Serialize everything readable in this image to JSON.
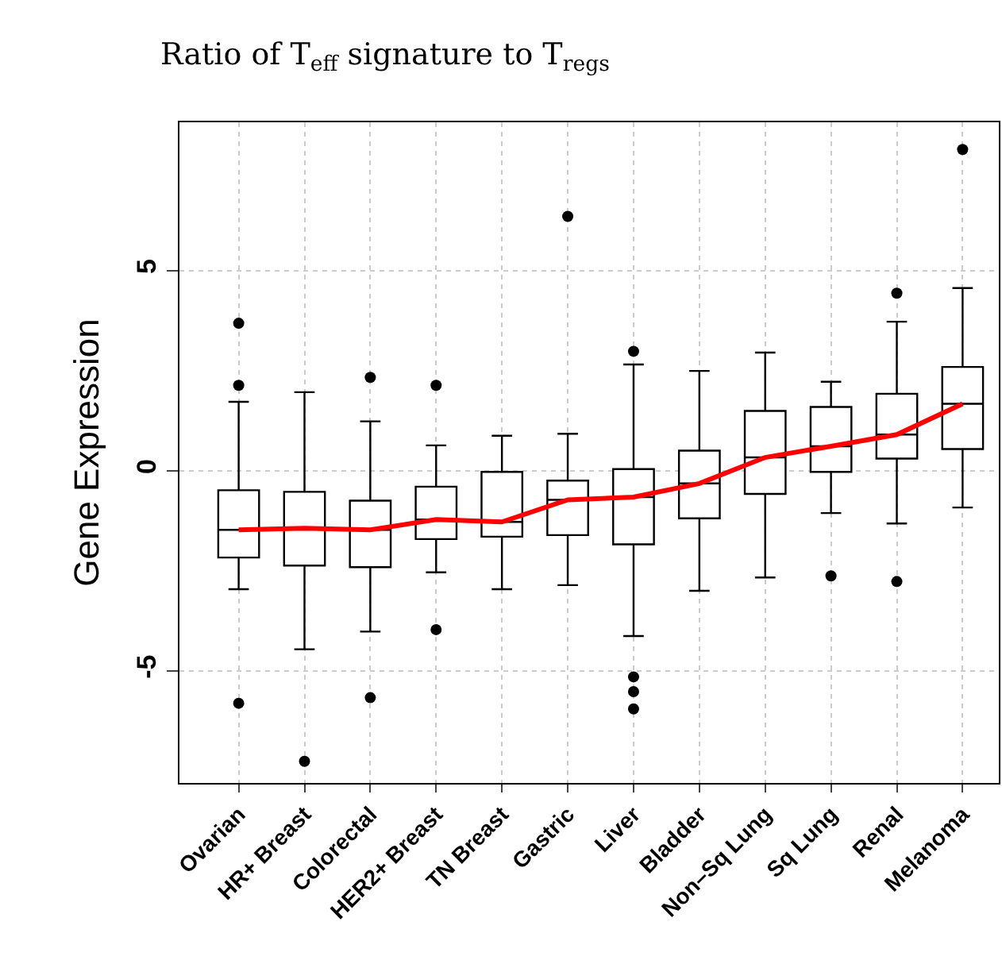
{
  "chart_data": {
    "type": "box",
    "title": "Ratio of T$_{eff}$ signature to T$_{regs}$",
    "ylabel": "Gene Expression",
    "categories": [
      "Ovarian",
      "HR+ Breast",
      "Colorectal",
      "HER2+ Breast",
      "TN Breast",
      "Gastric",
      "Liver",
      "Bladder",
      "Non–Sq Lung",
      "Sq Lung",
      "Renal",
      "Melanoma"
    ],
    "ylim": [
      -7.8,
      8.7
    ],
    "yticks": [
      -5,
      0,
      5
    ],
    "grid": true,
    "boxes": [
      {
        "low": -2.96,
        "q1": -2.17,
        "median": -1.48,
        "q3": -0.49,
        "high": 1.72,
        "outliers": [
          3.68,
          2.13,
          -5.81
        ]
      },
      {
        "low": -4.46,
        "q1": -2.37,
        "median": -1.44,
        "q3": -0.53,
        "high": 1.96,
        "outliers": [
          -7.26
        ]
      },
      {
        "low": -4.02,
        "q1": -2.41,
        "median": -1.48,
        "q3": -0.75,
        "high": 1.23,
        "outliers": [
          2.33,
          -5.67
        ]
      },
      {
        "low": -2.54,
        "q1": -1.71,
        "median": -1.22,
        "q3": -0.4,
        "high": 0.63,
        "outliers": [
          2.13,
          -3.97
        ]
      },
      {
        "low": -2.96,
        "q1": -1.65,
        "median": -1.28,
        "q3": -0.03,
        "high": 0.87
      },
      {
        "low": -2.86,
        "q1": -1.61,
        "median": -0.73,
        "q3": -0.25,
        "high": 0.92,
        "outliers": [
          6.35
        ]
      },
      {
        "low": -4.13,
        "q1": -1.84,
        "median": -0.66,
        "q3": 0.04,
        "high": 2.65,
        "outliers": [
          2.98,
          -5.15,
          -5.52,
          -5.95
        ]
      },
      {
        "low": -3.0,
        "q1": -1.19,
        "median": -0.32,
        "q3": 0.5,
        "high": 2.49
      },
      {
        "low": -2.67,
        "q1": -0.58,
        "median": 0.33,
        "q3": 1.49,
        "high": 2.95
      },
      {
        "low": -1.06,
        "q1": -0.03,
        "median": 0.61,
        "q3": 1.59,
        "high": 2.22,
        "outliers": [
          -2.63
        ]
      },
      {
        "low": -1.32,
        "q1": 0.3,
        "median": 0.9,
        "q3": 1.92,
        "high": 3.72,
        "outliers": [
          4.43,
          -2.77
        ]
      },
      {
        "low": -0.92,
        "q1": 0.54,
        "median": 1.67,
        "q3": 2.59,
        "high": 4.56,
        "outliers": [
          8.02
        ]
      }
    ],
    "series": [
      {
        "type": "line",
        "color": "#ff0000",
        "line_style": "solid",
        "values": [
          -1.48,
          -1.44,
          -1.48,
          -1.22,
          -1.28,
          -0.73,
          -0.66,
          -0.32,
          0.33,
          0.61,
          0.9,
          1.67
        ]
      }
    ]
  }
}
